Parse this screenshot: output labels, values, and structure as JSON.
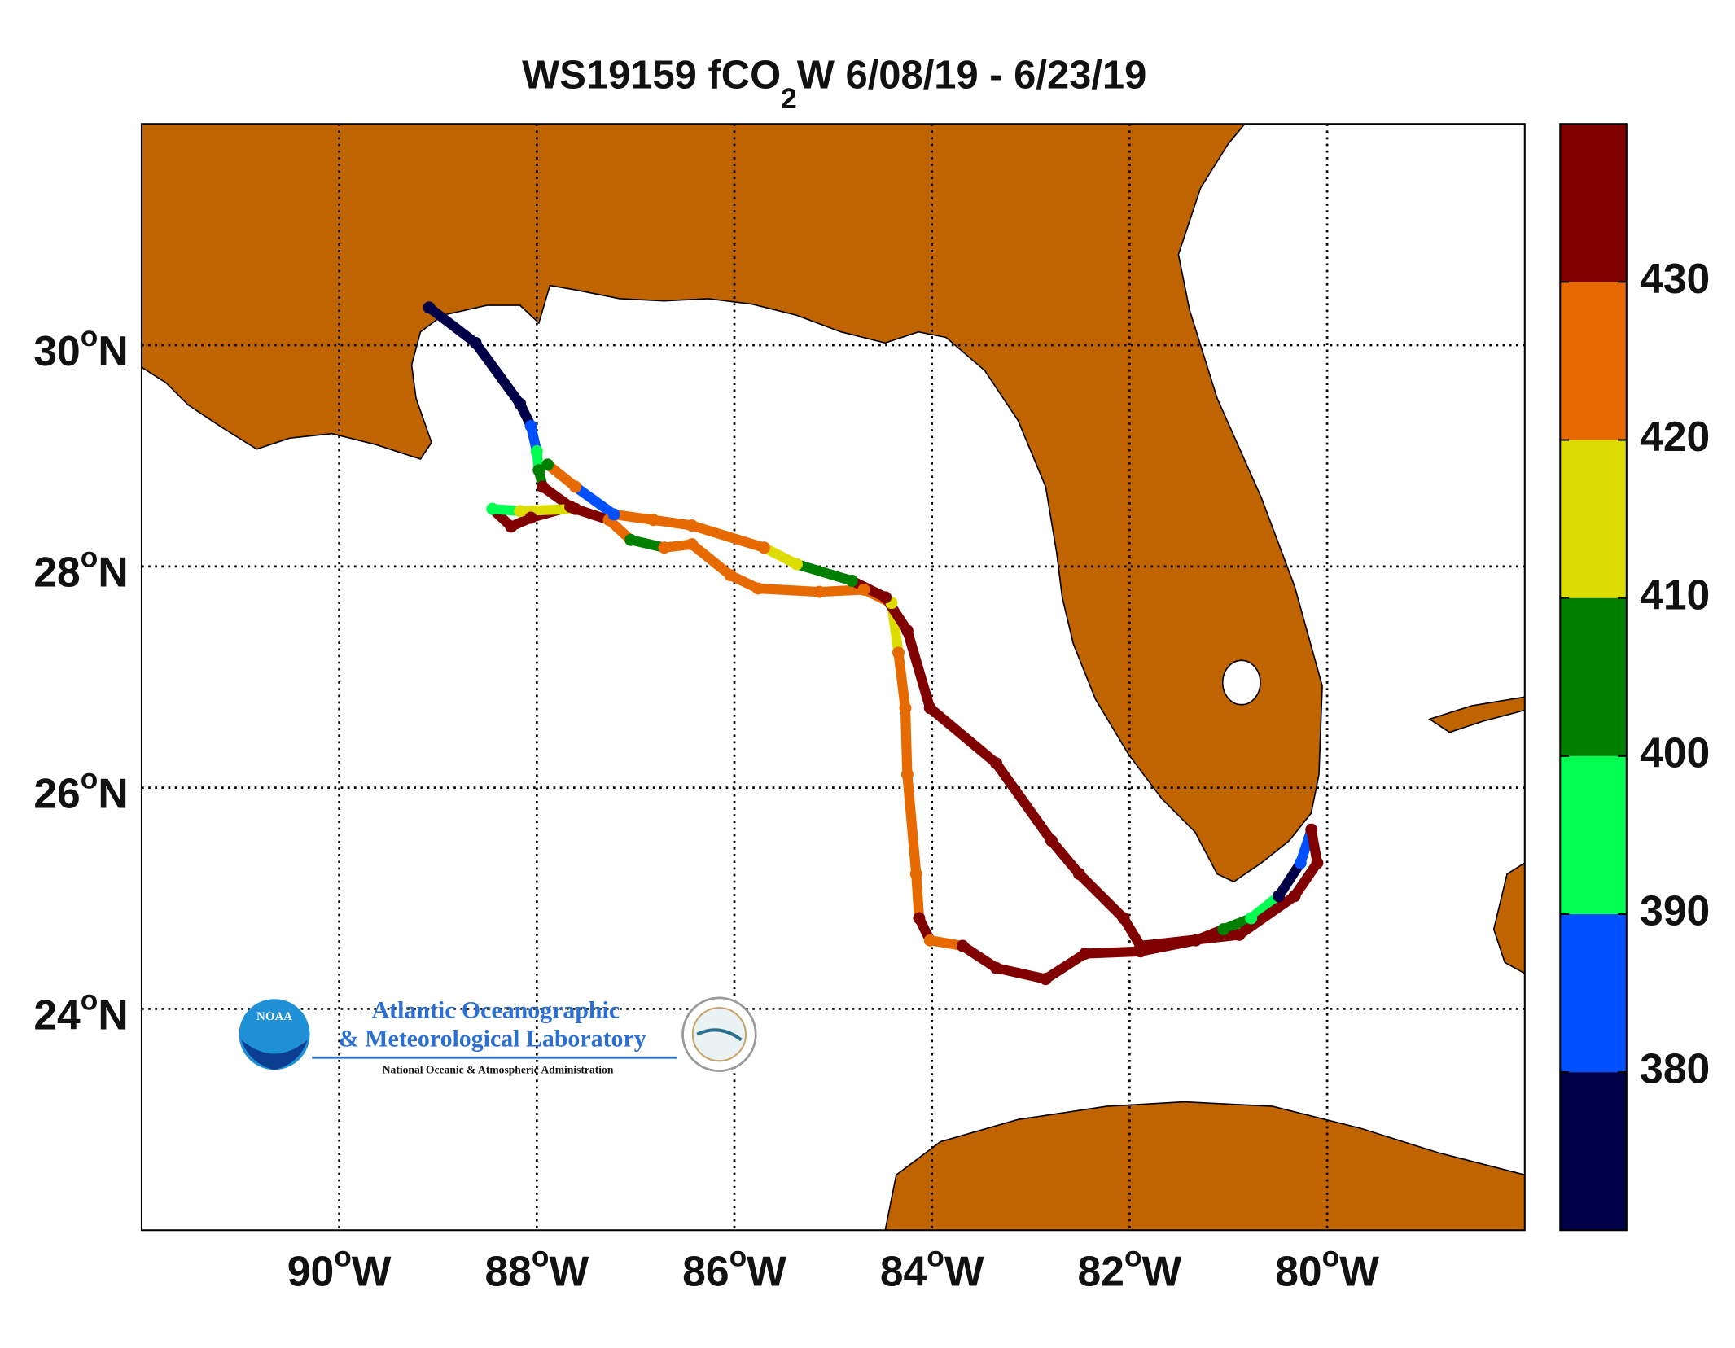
{
  "chart_data": {
    "type": "track",
    "title": {
      "prefix": "WS19159 fCO",
      "subscript": "2",
      "suffix": "W 6/08/19 - 6/23/19"
    },
    "xlim": [
      -92,
      -78
    ],
    "ylim": [
      22,
      32
    ],
    "xticks": [
      {
        "value": -90,
        "label": "90",
        "degree": "o",
        "hemisphere": "W"
      },
      {
        "value": -88,
        "label": "88",
        "degree": "o",
        "hemisphere": "W"
      },
      {
        "value": -86,
        "label": "86",
        "degree": "o",
        "hemisphere": "W"
      },
      {
        "value": -84,
        "label": "84",
        "degree": "o",
        "hemisphere": "W"
      },
      {
        "value": -82,
        "label": "82",
        "degree": "o",
        "hemisphere": "W"
      },
      {
        "value": -80,
        "label": "80",
        "degree": "o",
        "hemisphere": "W"
      }
    ],
    "yticks": [
      {
        "value": 24,
        "label": "24",
        "degree": "o",
        "hemisphere": "N"
      },
      {
        "value": 26,
        "label": "26",
        "degree": "o",
        "hemisphere": "N"
      },
      {
        "value": 28,
        "label": "28",
        "degree": "o",
        "hemisphere": "N"
      },
      {
        "value": 30,
        "label": "30",
        "degree": "o",
        "hemisphere": "N"
      }
    ],
    "grid": true,
    "land_color": "#bf6400",
    "x": [
      -89.09,
      -88.62,
      -88.17,
      -88.06,
      -88.0,
      -87.98,
      -87.94,
      -87.66,
      -88.06,
      -88.26,
      -88.45,
      -88.17,
      -87.61,
      -87.27,
      -87.05,
      -86.71,
      -86.43,
      -86.04,
      -85.76,
      -85.14,
      -84.69,
      -84.41,
      -84.34,
      -84.27,
      -84.25,
      -84.16,
      -84.13,
      -84.02,
      -83.69,
      -83.35,
      -82.85,
      -82.45,
      -81.89,
      -81.33,
      -81.05,
      -80.77,
      -80.49,
      -80.27,
      -80.16,
      -80.1,
      -80.33,
      -80.89,
      -81.89,
      -82.06,
      -82.51,
      -82.79,
      -83.35,
      -84.02,
      -84.25,
      -84.47,
      -84.81,
      -85.37,
      -85.7,
      -86.43,
      -86.82,
      -87.22,
      -87.61,
      -87.89
    ],
    "y": [
      30.34,
      30.02,
      29.47,
      29.27,
      29.04,
      28.87,
      28.72,
      28.54,
      28.44,
      28.36,
      28.52,
      28.5,
      28.52,
      28.42,
      28.24,
      28.17,
      28.2,
      27.92,
      27.8,
      27.77,
      27.79,
      27.67,
      27.22,
      26.72,
      26.12,
      25.22,
      24.82,
      24.62,
      24.57,
      24.37,
      24.27,
      24.5,
      24.52,
      24.62,
      24.72,
      24.82,
      25.02,
      25.32,
      25.62,
      25.32,
      25.02,
      24.67,
      24.57,
      24.82,
      25.22,
      25.52,
      26.22,
      26.72,
      27.42,
      27.72,
      27.87,
      28.02,
      28.17,
      28.37,
      28.42,
      28.47,
      28.72,
      28.92
    ],
    "values": [
      375,
      375,
      375,
      385,
      395,
      405,
      435,
      435,
      435,
      435,
      395,
      415,
      435,
      425,
      405,
      425,
      425,
      425,
      425,
      425,
      425,
      415,
      425,
      425,
      425,
      425,
      435,
      425,
      435,
      435,
      435,
      435,
      435,
      435,
      405,
      395,
      375,
      385,
      435,
      435,
      435,
      435,
      435,
      435,
      435,
      435,
      435,
      435,
      435,
      435,
      405,
      415,
      425,
      425,
      425,
      385,
      425,
      405
    ],
    "colorbar": {
      "levels": [
        370,
        380,
        390,
        400,
        410,
        420,
        430,
        440
      ],
      "colors": [
        "#000048",
        "#0050ff",
        "#00ff50",
        "#008000",
        "#dcdc00",
        "#e66a00",
        "#800000"
      ],
      "ticks": [
        380,
        390,
        400,
        410,
        420,
        430
      ]
    },
    "logo": {
      "emblem": "NOAA",
      "lines": [
        "Atlantic Oceanographic",
        "& Meteorological Laboratory",
        "National Oceanic & Atmospheric Administration"
      ]
    }
  }
}
